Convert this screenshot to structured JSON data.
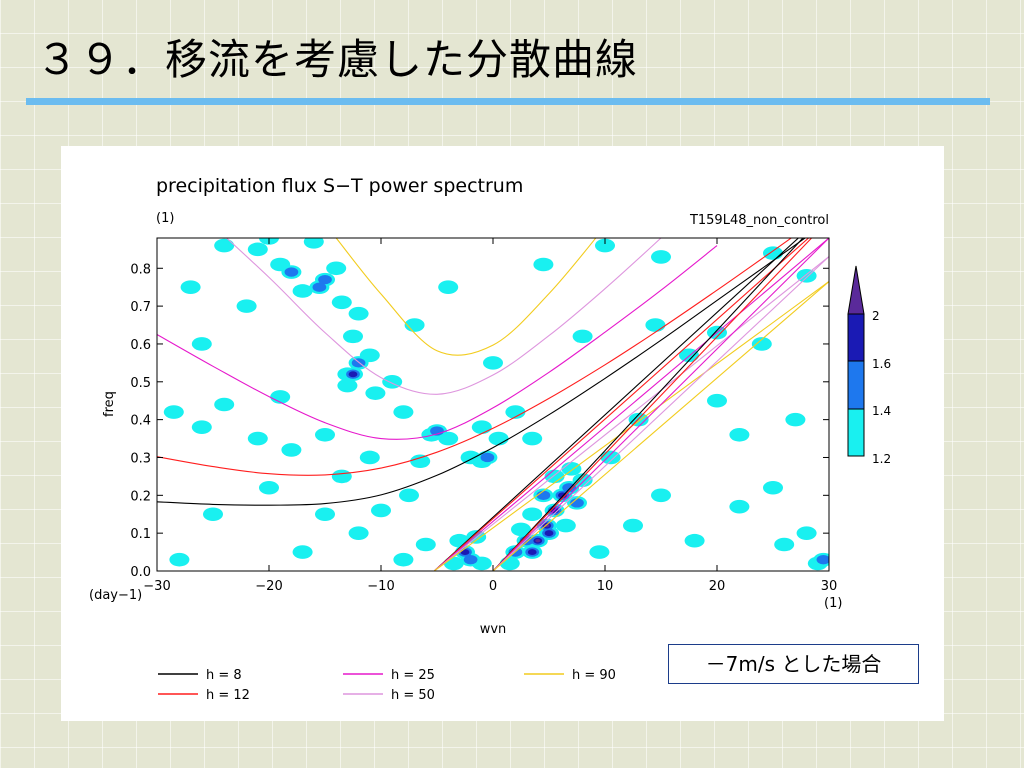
{
  "slide": {
    "title": "３９．移流を考慮した分散曲線",
    "note": "－7m/s とした場合"
  },
  "chart_data": {
    "type": "heatmap",
    "title": "precipitation flux S−T power spectrum",
    "subtitle": "(1)",
    "run_label": "T159L48_non_control",
    "xlabel": "wvn",
    "xunit": "(1)",
    "ylabel": "freq",
    "yunit": "(day−1)",
    "xlim": [
      -30,
      30
    ],
    "ylim": [
      0,
      0.88
    ],
    "xticks": [
      -30,
      -20,
      -10,
      0,
      10,
      20,
      30
    ],
    "xtick_labels": [
      "−30",
      "−20",
      "−10",
      "0",
      "10",
      "20",
      "30"
    ],
    "yticks": [
      0,
      0.1,
      0.2,
      0.3,
      0.4,
      0.5,
      0.6,
      0.7,
      0.8
    ],
    "ytick_labels": [
      "0.0",
      "0.1",
      "0.2",
      "0.3",
      "0.4",
      "0.5",
      "0.6",
      "0.7",
      "0.8"
    ],
    "colorbar": {
      "levels": [
        1.2,
        1.4,
        1.6,
        2
      ],
      "labels": [
        "1.2",
        "1.4",
        "1.6",
        "2"
      ],
      "colors": [
        "#19f0f0",
        "#1e78ee",
        "#1a1ab4",
        "#5a2a9a"
      ]
    },
    "legend": [
      {
        "label": "h =  8",
        "color": "#000000"
      },
      {
        "label": "h = 12",
        "color": "#ff1e1e"
      },
      {
        "label": "h = 25",
        "color": "#e619cc"
      },
      {
        "label": "h = 50",
        "color": "#de96de"
      },
      {
        "label": "h = 90",
        "color": "#f2cc1e"
      }
    ],
    "series": [
      {
        "name": "h =  8",
        "x": [
          -30,
          -25,
          -20,
          -15,
          -10,
          -5,
          0,
          5,
          10,
          15,
          20,
          25,
          30
        ],
        "y": [
          0.183,
          0.176,
          0.174,
          0.178,
          0.201,
          0.253,
          0.326,
          0.413,
          0.509,
          0.61,
          0.715,
          0.82,
          0.925
        ]
      },
      {
        "name": "h = 12",
        "x": [
          -30,
          -25,
          -20,
          -15,
          -10,
          -5,
          0,
          5,
          10,
          15,
          20,
          25,
          30
        ],
        "y": [
          0.302,
          0.276,
          0.257,
          0.254,
          0.272,
          0.314,
          0.377,
          0.456,
          0.545,
          0.641,
          0.742,
          0.846,
          0.951
        ]
      },
      {
        "name": "h = 25",
        "x": [
          -30,
          -25,
          -20,
          -15,
          -10,
          -5,
          0,
          5,
          10,
          15,
          20
        ],
        "y": [
          0.625,
          0.541,
          0.461,
          0.392,
          0.35,
          0.362,
          0.431,
          0.525,
          0.631,
          0.742,
          0.86
        ]
      },
      {
        "name": "h = 50",
        "x": [
          -26,
          -20,
          -15,
          -10,
          -5,
          0,
          5,
          10,
          15
        ],
        "y": [
          0.94,
          0.776,
          0.63,
          0.511,
          0.467,
          0.518,
          0.622,
          0.746,
          0.88
        ]
      },
      {
        "name": "h = 90",
        "x": [
          -14,
          -10,
          -5,
          0,
          5,
          10
        ],
        "y": [
          0.88,
          0.732,
          0.582,
          0.597,
          0.733,
          0.91
        ]
      },
      {
        "name": "h =  8",
        "x": [
          -5.25,
          30
        ],
        "y": [
          0,
          0.954
        ]
      },
      {
        "name": "h = 12",
        "x": [
          -5.25,
          30
        ],
        "y": [
          0,
          0.928
        ]
      },
      {
        "name": "h = 25",
        "x": [
          -5.25,
          30
        ],
        "y": [
          0,
          0.88
        ]
      },
      {
        "name": "h = 50",
        "x": [
          -5.25,
          30
        ],
        "y": [
          0,
          0.831
        ]
      },
      {
        "name": "h = 90",
        "x": [
          -5.25,
          30
        ],
        "y": [
          0,
          0.765
        ]
      },
      {
        "name": "h =  8",
        "x": [
          0,
          30
        ],
        "y": [
          0,
          0.954
        ]
      },
      {
        "name": "h = 12",
        "x": [
          0,
          30
        ],
        "y": [
          0,
          0.928
        ]
      },
      {
        "name": "h = 25",
        "x": [
          0,
          30
        ],
        "y": [
          0,
          0.88
        ]
      },
      {
        "name": "h = 50",
        "x": [
          0,
          30
        ],
        "y": [
          0,
          0.831
        ]
      },
      {
        "name": "h = 90",
        "x": [
          0,
          30
        ],
        "y": [
          0,
          0.765
        ]
      }
    ],
    "cells": [
      {
        "x": 3.5,
        "y": 0.05,
        "level": 3
      },
      {
        "x": 4.0,
        "y": 0.08,
        "level": 4
      },
      {
        "x": 4.8,
        "y": 0.12,
        "level": 4
      },
      {
        "x": 5.5,
        "y": 0.16,
        "level": 3
      },
      {
        "x": 6.2,
        "y": 0.2,
        "level": 3
      },
      {
        "x": 5.0,
        "y": 0.1,
        "level": 3
      },
      {
        "x": 3.0,
        "y": 0.08,
        "level": 2
      },
      {
        "x": 6.8,
        "y": 0.22,
        "level": 2
      },
      {
        "x": 7.5,
        "y": 0.18,
        "level": 2
      },
      {
        "x": 4.5,
        "y": 0.2,
        "level": 2
      },
      {
        "x": 2.0,
        "y": 0.05,
        "level": 2
      },
      {
        "x": 7.0,
        "y": 0.27,
        "level": 1
      },
      {
        "x": 5.5,
        "y": 0.25,
        "level": 1
      },
      {
        "x": 8.0,
        "y": 0.24,
        "level": 1
      },
      {
        "x": 3.5,
        "y": 0.15,
        "level": 1
      },
      {
        "x": 6.5,
        "y": 0.12,
        "level": 1
      },
      {
        "x": 1.5,
        "y": 0.02,
        "level": 1
      },
      {
        "x": 2.5,
        "y": 0.11,
        "level": 1
      },
      {
        "x": -2.5,
        "y": 0.05,
        "level": 3
      },
      {
        "x": -2.0,
        "y": 0.03,
        "level": 2
      },
      {
        "x": -3.0,
        "y": 0.08,
        "level": 1
      },
      {
        "x": -1.0,
        "y": 0.02,
        "level": 1
      },
      {
        "x": -3.5,
        "y": 0.02,
        "level": 1
      },
      {
        "x": -1.5,
        "y": 0.09,
        "level": 1
      },
      {
        "x": -0.5,
        "y": 0.3,
        "level": 2
      },
      {
        "x": -1.0,
        "y": 0.29,
        "level": 1
      },
      {
        "x": -2.0,
        "y": 0.3,
        "level": 1
      },
      {
        "x": -4.0,
        "y": 0.35,
        "level": 1
      },
      {
        "x": 0.5,
        "y": 0.35,
        "level": 1
      },
      {
        "x": 2.0,
        "y": 0.42,
        "level": 1
      },
      {
        "x": -5.0,
        "y": 0.37,
        "level": 2
      },
      {
        "x": -5.5,
        "y": 0.36,
        "level": 1
      },
      {
        "x": -1.0,
        "y": 0.38,
        "level": 1
      },
      {
        "x": 3.5,
        "y": 0.35,
        "level": 1
      },
      {
        "x": -12.0,
        "y": 0.55,
        "level": 2
      },
      {
        "x": -11.0,
        "y": 0.57,
        "level": 1
      },
      {
        "x": -13.0,
        "y": 0.52,
        "level": 1
      },
      {
        "x": -12.5,
        "y": 0.62,
        "level": 1
      },
      {
        "x": -12.5,
        "y": 0.52,
        "level": 3
      },
      {
        "x": -15.5,
        "y": 0.75,
        "level": 2
      },
      {
        "x": -15.0,
        "y": 0.77,
        "level": 2
      },
      {
        "x": -17.0,
        "y": 0.74,
        "level": 1
      },
      {
        "x": -14.0,
        "y": 0.8,
        "level": 1
      },
      {
        "x": -18.0,
        "y": 0.79,
        "level": 2
      },
      {
        "x": -19.0,
        "y": 0.81,
        "level": 1
      },
      {
        "x": -12.0,
        "y": 0.68,
        "level": 1
      },
      {
        "x": -13.5,
        "y": 0.71,
        "level": 1
      },
      {
        "x": -9.0,
        "y": 0.5,
        "level": 1
      },
      {
        "x": -10.5,
        "y": 0.47,
        "level": 1
      },
      {
        "x": -13.0,
        "y": 0.49,
        "level": 1
      },
      {
        "x": -21.0,
        "y": 0.85,
        "level": 1
      },
      {
        "x": -20.0,
        "y": 0.88,
        "level": 1
      },
      {
        "x": -24.0,
        "y": 0.86,
        "level": 1
      },
      {
        "x": -16.0,
        "y": 0.87,
        "level": 1
      },
      {
        "x": -22.0,
        "y": 0.7,
        "level": 1
      },
      {
        "x": -27.0,
        "y": 0.75,
        "level": 1
      },
      {
        "x": -26.0,
        "y": 0.38,
        "level": 1
      },
      {
        "x": -28.5,
        "y": 0.42,
        "level": 1
      },
      {
        "x": -21.0,
        "y": 0.35,
        "level": 1
      },
      {
        "x": -18.0,
        "y": 0.32,
        "level": 1
      },
      {
        "x": -15.0,
        "y": 0.36,
        "level": 1
      },
      {
        "x": -11.0,
        "y": 0.3,
        "level": 1
      },
      {
        "x": -8.0,
        "y": 0.42,
        "level": 1
      },
      {
        "x": -24.0,
        "y": 0.44,
        "level": 1
      },
      {
        "x": -19.0,
        "y": 0.46,
        "level": 1
      },
      {
        "x": -13.5,
        "y": 0.25,
        "level": 1
      },
      {
        "x": -10.0,
        "y": 0.16,
        "level": 1
      },
      {
        "x": -7.5,
        "y": 0.2,
        "level": 1
      },
      {
        "x": -15.0,
        "y": 0.15,
        "level": 1
      },
      {
        "x": -6.5,
        "y": 0.29,
        "level": 1
      },
      {
        "x": -8.0,
        "y": 0.03,
        "level": 1
      },
      {
        "x": -6.0,
        "y": 0.07,
        "level": 1
      },
      {
        "x": -25.0,
        "y": 0.15,
        "level": 1
      },
      {
        "x": -20.0,
        "y": 0.22,
        "level": 1
      },
      {
        "x": -28.0,
        "y": 0.03,
        "level": 1
      },
      {
        "x": -17.0,
        "y": 0.05,
        "level": 1
      },
      {
        "x": -12.0,
        "y": 0.1,
        "level": 1
      },
      {
        "x": -26.0,
        "y": 0.6,
        "level": 1
      },
      {
        "x": -7.0,
        "y": 0.65,
        "level": 1
      },
      {
        "x": -4.0,
        "y": 0.75,
        "level": 1
      },
      {
        "x": 4.5,
        "y": 0.81,
        "level": 1
      },
      {
        "x": 10.0,
        "y": 0.86,
        "level": 1
      },
      {
        "x": 15.0,
        "y": 0.83,
        "level": 1
      },
      {
        "x": 25.0,
        "y": 0.84,
        "level": 1
      },
      {
        "x": 28.0,
        "y": 0.78,
        "level": 1
      },
      {
        "x": 14.5,
        "y": 0.65,
        "level": 1
      },
      {
        "x": 17.5,
        "y": 0.57,
        "level": 1
      },
      {
        "x": 24.0,
        "y": 0.6,
        "level": 1
      },
      {
        "x": 20.0,
        "y": 0.45,
        "level": 1
      },
      {
        "x": 27.0,
        "y": 0.4,
        "level": 1
      },
      {
        "x": 22.0,
        "y": 0.36,
        "level": 1
      },
      {
        "x": 13.0,
        "y": 0.4,
        "level": 1
      },
      {
        "x": 10.5,
        "y": 0.3,
        "level": 1
      },
      {
        "x": 15.0,
        "y": 0.2,
        "level": 1
      },
      {
        "x": 25.0,
        "y": 0.22,
        "level": 1
      },
      {
        "x": 22.0,
        "y": 0.17,
        "level": 1
      },
      {
        "x": 28.0,
        "y": 0.1,
        "level": 1
      },
      {
        "x": 26.0,
        "y": 0.07,
        "level": 1
      },
      {
        "x": 29.5,
        "y": 0.03,
        "level": 2
      },
      {
        "x": 29.0,
        "y": 0.02,
        "level": 1
      },
      {
        "x": 18.0,
        "y": 0.08,
        "level": 1
      },
      {
        "x": 12.5,
        "y": 0.12,
        "level": 1
      },
      {
        "x": 9.5,
        "y": 0.05,
        "level": 1
      },
      {
        "x": 20.0,
        "y": 0.63,
        "level": 1
      },
      {
        "x": 8.0,
        "y": 0.62,
        "level": 1
      },
      {
        "x": 0.0,
        "y": 0.55,
        "level": 1
      }
    ]
  }
}
